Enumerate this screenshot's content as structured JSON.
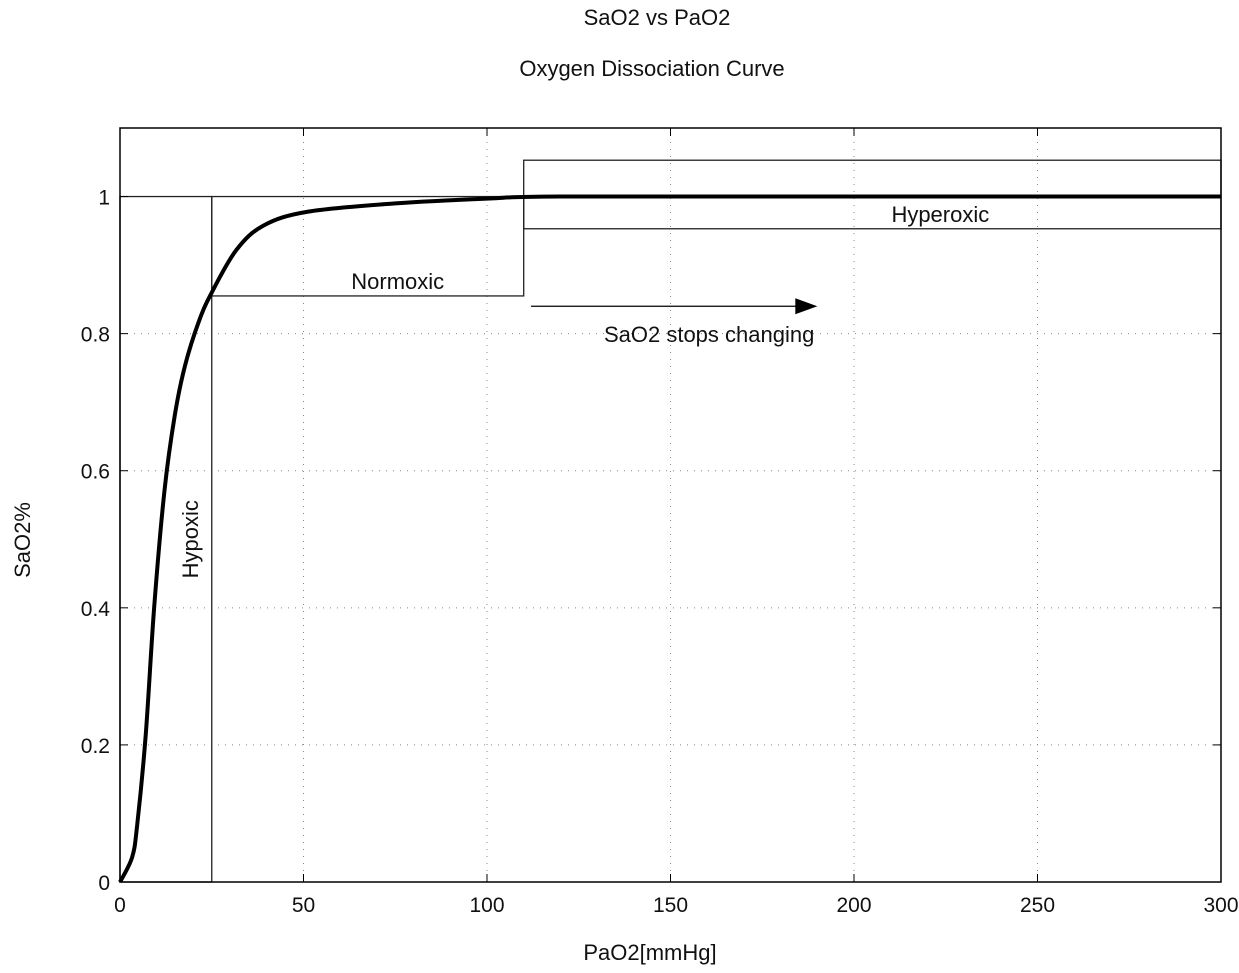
{
  "chart_data": {
    "type": "line",
    "title": "SaO2 vs PaO2",
    "subtitle": "Oxygen Dissociation Curve",
    "xlabel": "PaO2[mmHg]",
    "ylabel": "SaO2%",
    "xlim": [
      0,
      300
    ],
    "ylim": [
      0,
      1.1
    ],
    "grid": true,
    "xticks": [
      0,
      50,
      100,
      150,
      200,
      250,
      300
    ],
    "xtick_labels": [
      "0",
      "50",
      "100",
      "150",
      "200",
      "250",
      "300"
    ],
    "yticks": [
      0,
      0.2,
      0.4,
      0.6,
      0.8,
      1
    ],
    "ytick_labels": [
      "0",
      "0.2",
      "0.4",
      "0.6",
      "0.8",
      "1"
    ],
    "series": [
      {
        "name": "SaO2",
        "color": "#000000",
        "x": [
          0,
          3.3,
          4.7,
          7.0,
          9.3,
          12.1,
          14.9,
          17.7,
          21.5,
          25,
          31.7,
          39.2,
          51.3,
          75,
          100,
          120,
          200,
          300
        ],
        "y": [
          0,
          0.036,
          0.084,
          0.214,
          0.4,
          0.57,
          0.68,
          0.753,
          0.818,
          0.86,
          0.922,
          0.958,
          0.978,
          0.99,
          0.997,
          1.0,
          1.0,
          1.0
        ]
      }
    ],
    "regions": [
      {
        "label": "Hypoxic",
        "x": [
          0,
          25
        ],
        "y": [
          0,
          1.0
        ],
        "label_rotated": true
      },
      {
        "label": "Normoxic",
        "x": [
          25,
          110
        ],
        "y": [
          0.855,
          1.0
        ]
      },
      {
        "label": "Hyperoxic",
        "x": [
          110,
          300
        ],
        "y": [
          0.953,
          1.053
        ]
      }
    ],
    "annotations": [
      {
        "text": "SaO2 stops changing",
        "arrow_from": [
          112,
          0.84
        ],
        "arrow_to": [
          190,
          0.84
        ]
      }
    ]
  }
}
